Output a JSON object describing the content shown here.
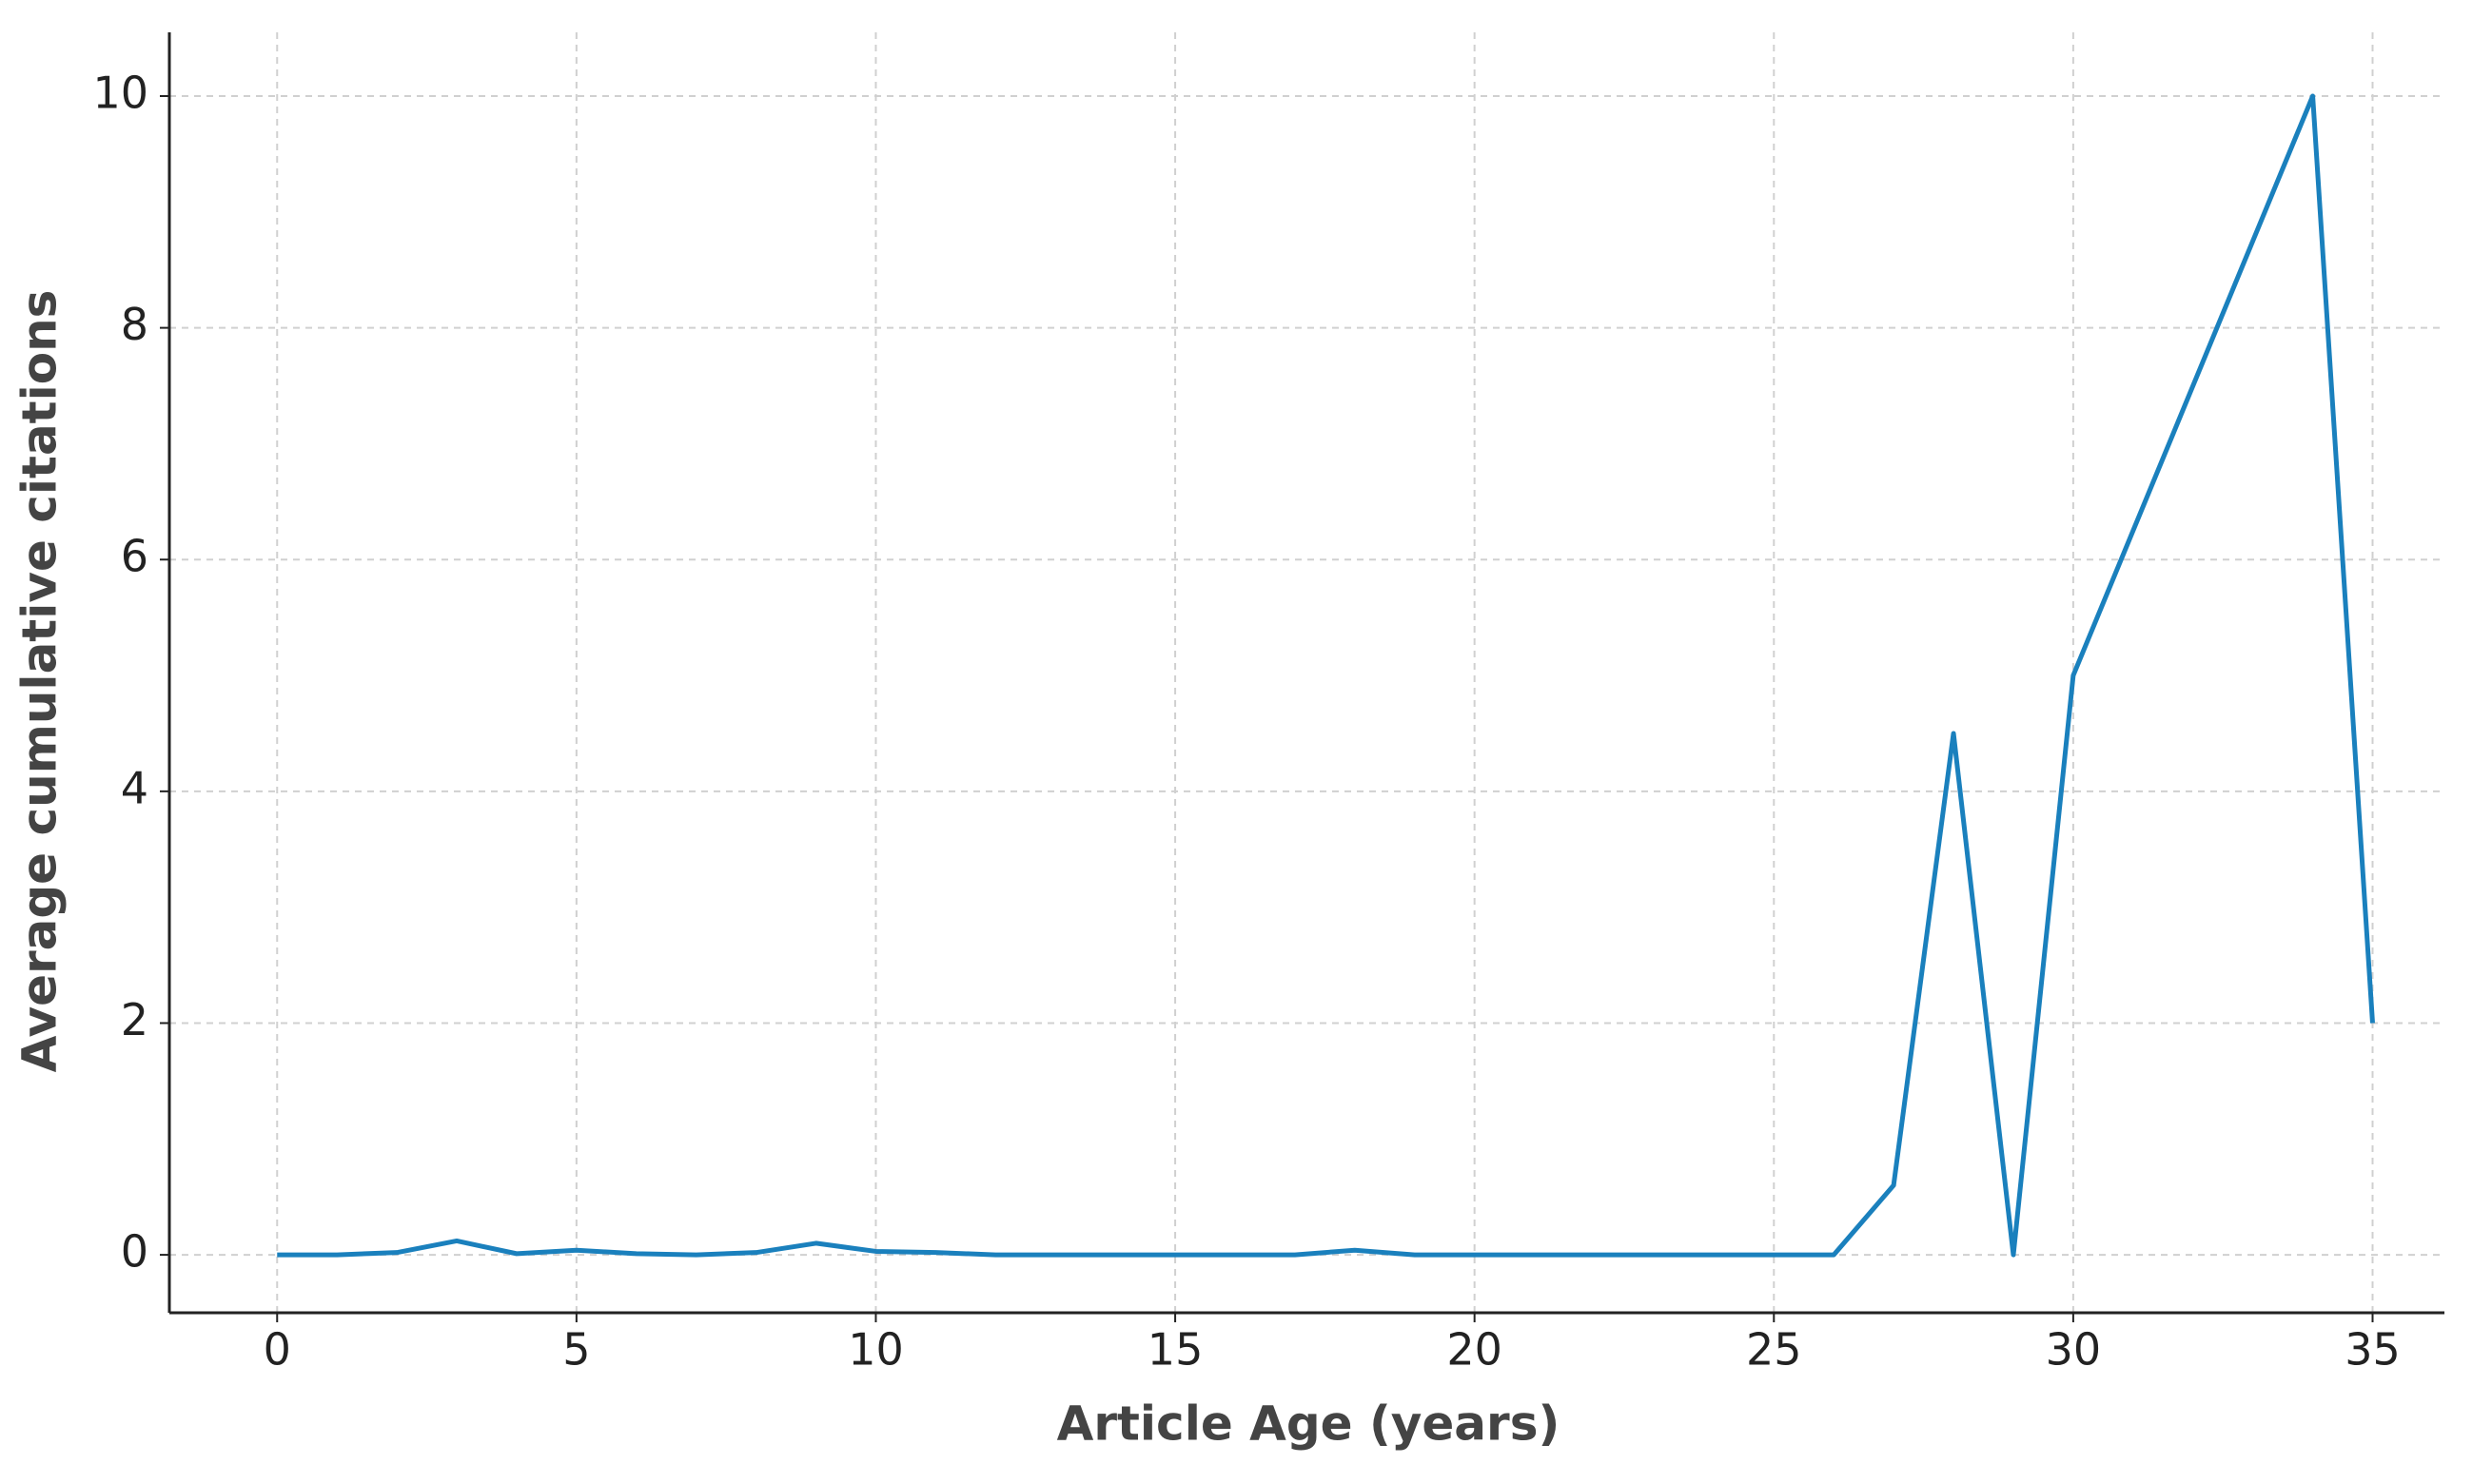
{
  "chart_data": {
    "type": "line",
    "x_label": "Article Age (years)",
    "y_label": "Average cumulative citations",
    "x": [
      0,
      1,
      2,
      3,
      4,
      5,
      6,
      7,
      8,
      9,
      10,
      11,
      12,
      13,
      14,
      15,
      16,
      17,
      18,
      19,
      20,
      21,
      22,
      23,
      24,
      25,
      26,
      27,
      28,
      29,
      30,
      34,
      35
    ],
    "series": [
      {
        "color": "#1a80bd",
        "values": [
          0,
          0,
          0.02,
          0.12,
          0.01,
          0.04,
          0.01,
          0,
          0.02,
          0.1,
          0.03,
          0.02,
          0,
          0,
          0,
          0,
          0,
          0,
          0.04,
          0,
          0,
          0,
          0,
          0,
          0,
          0,
          0,
          0.6,
          4.5,
          0,
          5,
          10,
          2
        ]
      }
    ],
    "xlim": [
      -1.8,
      36.2
    ],
    "ylim": [
      -0.5,
      10.55
    ],
    "xticks": [
      0,
      5,
      10,
      15,
      20,
      25,
      30,
      35
    ],
    "yticks": [
      0,
      2,
      4,
      6,
      8,
      10
    ],
    "grid": true
  }
}
